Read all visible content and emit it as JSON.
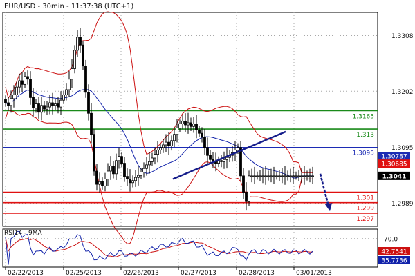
{
  "header": {
    "title": "EUR/USD - 30min - 11:37:38 (UTC+1)"
  },
  "colors": {
    "candle": "#000000",
    "bollinger": "#cc1111",
    "moving_average": "#1122aa",
    "trendline": "#141c8a",
    "resistance": "#1a8a1a",
    "pivot": "#1c2bb4",
    "support": "#e01010",
    "rsi": "#1122aa",
    "rsi_ma": "#cc1111",
    "grid": "#a8a8a8"
  },
  "chart_data": [
    {
      "type": "candlestick",
      "title": "EUR/USD - 30min - 11:37:38 (UTC+1)",
      "xlabel": "",
      "ylabel": "",
      "x_tick_labels": [
        "02/22/2013",
        "02/25/2013",
        "02/26/2013",
        "02/27/2013",
        "02/28/2013",
        "03/01/2013"
      ],
      "y_ticks": [
        1.2989,
        1.3095,
        1.3202,
        1.3308
      ],
      "ylim": [
        1.2945,
        1.3352
      ],
      "grid": true,
      "series": [
        {
          "kind": "price",
          "name": "EUR/USD",
          "x": [
            0,
            4,
            8,
            12,
            16,
            20,
            24,
            28,
            32,
            36,
            40,
            44,
            48,
            52,
            56,
            60,
            64,
            68,
            72,
            76,
            80,
            84,
            88,
            92,
            96,
            100,
            104,
            108,
            112,
            116,
            120,
            124,
            128,
            132,
            136,
            140,
            144,
            148,
            152,
            156,
            160,
            164,
            168,
            172,
            176,
            180,
            184,
            188,
            192,
            196,
            200,
            204,
            208,
            212,
            216,
            220,
            224,
            228,
            232,
            236,
            240,
            244,
            248,
            252,
            256,
            260,
            264,
            268,
            272,
            276,
            280,
            284,
            288,
            292,
            296,
            300,
            304,
            308,
            312,
            316,
            320,
            324,
            328,
            332,
            336,
            340,
            344,
            348,
            352,
            356,
            360,
            364,
            368,
            372,
            376,
            380,
            384,
            388,
            392,
            396,
            400,
            404,
            408,
            412,
            416,
            420,
            424,
            428,
            432,
            436,
            440,
            444,
            448,
            452,
            456
          ],
          "close": [
            1.318,
            1.3175,
            1.3188,
            1.3195,
            1.321,
            1.3222,
            1.3215,
            1.323,
            1.3225,
            1.319,
            1.317,
            1.3178,
            1.3162,
            1.3175,
            1.3168,
            1.3172,
            1.318,
            1.3175,
            1.3178,
            1.3172,
            1.3185,
            1.3195,
            1.3205,
            1.3225,
            1.3245,
            1.328,
            1.3305,
            1.329,
            1.325,
            1.32,
            1.316,
            1.312,
            1.305,
            1.3025,
            1.303,
            1.3022,
            1.3035,
            1.305,
            1.306,
            1.3045,
            1.307,
            1.3078,
            1.3065,
            1.304,
            1.3035,
            1.3028,
            1.3032,
            1.3038,
            1.3042,
            1.3048,
            1.3055,
            1.3062,
            1.3068,
            1.3075,
            1.3082,
            1.309,
            1.3095,
            1.31,
            1.3105,
            1.3098,
            1.3108,
            1.312,
            1.3132,
            1.314,
            1.3145,
            1.3138,
            1.3142,
            1.3135,
            1.314,
            1.3128,
            1.3122,
            1.3115,
            1.3095,
            1.308,
            1.3072,
            1.3068,
            1.3065,
            1.307,
            1.3068,
            1.3072,
            1.3076,
            1.308,
            1.3085,
            1.309,
            1.3095,
            1.3041,
            1.301,
            1.2992,
            1.3041,
            1.3041,
            1.3041,
            1.3041,
            1.3041,
            1.3041,
            1.3041,
            1.3041,
            1.3041,
            1.3041,
            1.3041,
            1.3041,
            1.3041,
            1.3041,
            1.3041,
            1.3041,
            1.3041,
            1.3041,
            1.3041,
            1.3041,
            1.3041,
            1.3041,
            1.3041,
            1.3041,
            1.3041,
            1.3041,
            1.3041
          ]
        }
      ],
      "horizontal_levels": [
        {
          "label": "1.3165",
          "value": 1.3165,
          "kind": "resistance"
        },
        {
          "label": "1.313",
          "value": 1.313,
          "kind": "resistance"
        },
        {
          "label": "1.3095",
          "value": 1.3095,
          "kind": "pivot"
        },
        {
          "label": "1.301",
          "value": 1.301,
          "kind": "support"
        },
        {
          "label": "1.299",
          "value": 1.299,
          "kind": "support"
        },
        {
          "label": "1.297",
          "value": 1.297,
          "kind": "support"
        }
      ],
      "price_tags": [
        {
          "label": "1.30787",
          "value": 1.30787,
          "kind": "pivot"
        },
        {
          "label": "1.30685",
          "value": 1.30685,
          "kind": "support"
        },
        {
          "label": "1.3041",
          "value": 1.3041,
          "kind": "last"
        }
      ],
      "trendline": {
        "from": {
          "x": 242,
          "y": 1.3035
        },
        "to": {
          "x": 405,
          "y": 1.3125
        }
      },
      "forecast_arrow": {
        "from": {
          "x": 455,
          "y": 1.3045
        },
        "to": {
          "x": 468,
          "y": 1.2975
        }
      }
    },
    {
      "type": "line",
      "title": "RSI14 - 9MA",
      "xlabel": "",
      "ylabel": "",
      "y_ticks": [
        70.0
      ],
      "ylim": [
        10,
        90
      ],
      "grid": true,
      "tags": [
        {
          "label": "42.7541",
          "value": 42.7541,
          "kind": "rsi_ma"
        },
        {
          "label": "35.7736",
          "value": 35.7736,
          "kind": "rsi"
        }
      ]
    }
  ]
}
